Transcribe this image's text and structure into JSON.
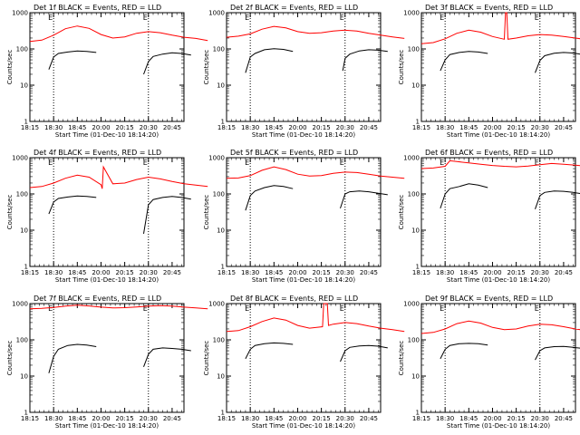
{
  "ui": {
    "y_ticks": [
      "1",
      "10",
      "100",
      "1000"
    ],
    "x_ticks": [
      "18:15",
      "18:30",
      "18:45",
      "20:00",
      "20:15",
      "20:30",
      "20:45"
    ],
    "marker_labels": [
      "E",
      "E"
    ],
    "line_colors": {
      "events": "#000000",
      "lld": "#ff0000",
      "marker": "#000000"
    }
  },
  "chart_data": [
    {
      "type": "line",
      "title": "Det 1f BLACK = Events, RED = LLD",
      "xlabel": "Start Time (01-Dec-10 18:14:20)",
      "ylabel": "Counts/sec",
      "yscale": "log",
      "ylim": [
        1,
        1000
      ],
      "x_ticks": [
        "18:15",
        "18:30",
        "18:45",
        "20:00",
        "20:15",
        "20:30",
        "20:45"
      ],
      "markers": [
        {
          "at": "18:30",
          "label": "E"
        },
        {
          "at": "20:30",
          "label": "E"
        }
      ],
      "events": [
        {
          "x": [
            0.8,
            1.0,
            1.2,
            1.6,
            2.0,
            2.4,
            2.8
          ],
          "y": [
            27,
            60,
            75,
            82,
            88,
            85,
            80
          ]
        },
        {
          "x": [
            4.8,
            5.0,
            5.2,
            5.6,
            6.0,
            6.4,
            6.8
          ],
          "y": [
            20,
            45,
            62,
            72,
            78,
            75,
            68
          ]
        }
      ],
      "lld": {
        "x": [
          0,
          0.5,
          1.0,
          1.5,
          2.0,
          2.5,
          3.0,
          3.5,
          4.0,
          4.5,
          5.0,
          5.5,
          6.0,
          6.5,
          7.0,
          7.5
        ],
        "y": [
          160,
          175,
          240,
          360,
          430,
          370,
          250,
          200,
          215,
          270,
          300,
          280,
          240,
          210,
          195,
          170
        ]
      }
    },
    {
      "type": "line",
      "title": "Det 2f BLACK = Events, RED = LLD",
      "xlabel": "Start Time (01-Dec-10 18:14:20)",
      "ylabel": "Counts/sec",
      "yscale": "log",
      "ylim": [
        1,
        1000
      ],
      "x_ticks": [
        "18:15",
        "18:30",
        "18:45",
        "20:00",
        "20:15",
        "20:30",
        "20:45"
      ],
      "markers": [
        {
          "at": "18:30",
          "label": "E"
        },
        {
          "at": "20:30",
          "label": "E"
        }
      ],
      "events": [
        {
          "x": [
            0.8,
            1.0,
            1.2,
            1.6,
            2.0,
            2.4,
            2.8
          ],
          "y": [
            22,
            60,
            75,
            95,
            102,
            97,
            85
          ]
        },
        {
          "x": [
            4.9,
            5.0,
            5.2,
            5.6,
            6.0,
            6.4,
            6.8
          ],
          "y": [
            25,
            55,
            72,
            88,
            95,
            92,
            85
          ]
        }
      ],
      "lld": {
        "x": [
          0,
          0.5,
          1.0,
          1.5,
          2.0,
          2.5,
          3.0,
          3.5,
          4.0,
          4.5,
          5.0,
          5.5,
          6.0,
          6.5,
          7.0,
          7.5
        ],
        "y": [
          210,
          225,
          260,
          350,
          420,
          380,
          300,
          270,
          280,
          310,
          330,
          310,
          270,
          240,
          215,
          195
        ]
      }
    },
    {
      "type": "line",
      "title": "Det 3f BLACK = Events, RED = LLD",
      "xlabel": "Start Time (01-Dec-10 18:14:20)",
      "ylabel": "Counts/sec",
      "yscale": "log",
      "ylim": [
        1,
        1000
      ],
      "x_ticks": [
        "18:15",
        "18:30",
        "18:45",
        "20:00",
        "20:15",
        "20:30",
        "20:45"
      ],
      "markers": [
        {
          "at": "18:30",
          "label": "E"
        },
        {
          "at": "20:30",
          "label": "E"
        }
      ],
      "events": [
        {
          "x": [
            0.8,
            1.0,
            1.2,
            1.6,
            2.0,
            2.4,
            2.8
          ],
          "y": [
            25,
            50,
            70,
            80,
            85,
            82,
            75
          ]
        },
        {
          "x": [
            4.8,
            5.0,
            5.2,
            5.6,
            6.0,
            6.4,
            6.8
          ],
          "y": [
            22,
            48,
            65,
            76,
            80,
            77,
            70
          ]
        }
      ],
      "lld": {
        "x": [
          0,
          0.5,
          1.0,
          1.5,
          2.0,
          2.5,
          3.0,
          3.5,
          3.55,
          3.6,
          3.65,
          4.0,
          4.5,
          5.0,
          5.5,
          6.0,
          6.5,
          7.0,
          7.5
        ],
        "y": [
          140,
          150,
          190,
          270,
          330,
          290,
          220,
          185,
          1000,
          1000,
          185,
          200,
          230,
          250,
          240,
          220,
          200,
          180,
          165
        ]
      }
    },
    {
      "type": "line",
      "title": "Det 4f BLACK = Events, RED = LLD",
      "xlabel": "Start Time (01-Dec-10 18:14:20)",
      "ylabel": "Counts/sec",
      "yscale": "log",
      "ylim": [
        1,
        1000
      ],
      "x_ticks": [
        "18:15",
        "18:30",
        "18:45",
        "20:00",
        "20:15",
        "20:30",
        "20:45"
      ],
      "markers": [
        {
          "at": "18:30",
          "label": "E"
        },
        {
          "at": "20:30",
          "label": "E"
        }
      ],
      "events": [
        {
          "x": [
            0.8,
            1.0,
            1.2,
            1.6,
            2.0,
            2.4,
            2.8
          ],
          "y": [
            28,
            60,
            75,
            82,
            88,
            85,
            80
          ]
        },
        {
          "x": [
            4.8,
            5.0,
            5.2,
            5.6,
            6.0,
            6.4,
            6.8
          ],
          "y": [
            8,
            50,
            70,
            80,
            85,
            80,
            72
          ]
        }
      ],
      "lld": {
        "x": [
          0,
          0.5,
          1.0,
          1.5,
          2.0,
          2.5,
          3.0,
          3.05,
          3.1,
          3.5,
          4.0,
          4.5,
          5.0,
          5.5,
          6.0,
          6.5,
          7.0,
          7.5
        ],
        "y": [
          150,
          160,
          200,
          270,
          330,
          290,
          180,
          140,
          560,
          190,
          200,
          250,
          290,
          260,
          220,
          190,
          175,
          160
        ]
      }
    },
    {
      "type": "line",
      "title": "Det 5f BLACK = Events, RED = LLD",
      "xlabel": "Start Time (01-Dec-10 18:14:20)",
      "ylabel": "Counts/sec",
      "yscale": "log",
      "ylim": [
        1,
        1000
      ],
      "x_ticks": [
        "18:15",
        "18:30",
        "18:45",
        "20:00",
        "20:15",
        "20:30",
        "20:45"
      ],
      "markers": [
        {
          "at": "18:30",
          "label": "E"
        },
        {
          "at": "20:30",
          "label": "E"
        }
      ],
      "events": [
        {
          "x": [
            0.8,
            1.0,
            1.2,
            1.6,
            2.0,
            2.4,
            2.8
          ],
          "y": [
            35,
            90,
            120,
            150,
            170,
            160,
            140
          ]
        },
        {
          "x": [
            4.8,
            5.0,
            5.2,
            5.6,
            6.0,
            6.4,
            6.8
          ],
          "y": [
            40,
            100,
            115,
            120,
            115,
            105,
            95
          ]
        }
      ],
      "lld": {
        "x": [
          0,
          0.5,
          1.0,
          1.5,
          2.0,
          2.5,
          3.0,
          3.5,
          4.0,
          4.5,
          5.0,
          5.5,
          6.0,
          6.5,
          7.0,
          7.5
        ],
        "y": [
          270,
          275,
          320,
          450,
          560,
          470,
          350,
          310,
          320,
          370,
          400,
          390,
          350,
          310,
          290,
          270
        ]
      }
    },
    {
      "type": "line",
      "title": "Det 6f BLACK = Events, RED = LLD",
      "xlabel": "Start Time (01-Dec-10 18:14:20)",
      "ylabel": "Counts/sec",
      "yscale": "log",
      "ylim": [
        1,
        1000
      ],
      "x_ticks": [
        "18:15",
        "18:30",
        "18:45",
        "20:00",
        "20:15",
        "20:30",
        "20:45"
      ],
      "markers": [
        {
          "at": "18:30",
          "label": "E"
        },
        {
          "at": "20:30",
          "label": "E"
        }
      ],
      "events": [
        {
          "x": [
            0.8,
            1.0,
            1.2,
            1.6,
            2.0,
            2.4,
            2.8
          ],
          "y": [
            40,
            100,
            140,
            160,
            190,
            175,
            150
          ]
        },
        {
          "x": [
            4.8,
            5.0,
            5.2,
            5.6,
            6.0,
            6.4,
            6.8
          ],
          "y": [
            38,
            90,
            110,
            120,
            118,
            110,
            100
          ]
        }
      ],
      "lld": {
        "x": [
          0,
          0.5,
          1.0,
          1.2,
          1.5,
          2.0,
          2.5,
          3.0,
          3.5,
          4.0,
          4.5,
          5.0,
          5.5,
          6.0,
          6.5,
          7.0,
          7.5
        ],
        "y": [
          500,
          520,
          580,
          820,
          780,
          720,
          660,
          610,
          580,
          560,
          590,
          640,
          690,
          660,
          620,
          580,
          540
        ]
      }
    },
    {
      "type": "line",
      "title": "Det 7f BLACK = Events, RED = LLD",
      "xlabel": "Start Time (01-Dec-10 18:14:20)",
      "ylabel": "Counts/sec",
      "yscale": "log",
      "ylim": [
        1,
        1000
      ],
      "x_ticks": [
        "18:15",
        "18:30",
        "18:45",
        "20:00",
        "20:15",
        "20:30",
        "20:45"
      ],
      "markers": [
        {
          "at": "18:30",
          "label": "E"
        },
        {
          "at": "20:30",
          "label": "E"
        }
      ],
      "events": [
        {
          "x": [
            0.8,
            1.0,
            1.2,
            1.6,
            2.0,
            2.4,
            2.8
          ],
          "y": [
            12,
            35,
            55,
            70,
            75,
            72,
            65
          ]
        },
        {
          "x": [
            4.8,
            5.0,
            5.2,
            5.6,
            6.0,
            6.4,
            6.8
          ],
          "y": [
            18,
            40,
            55,
            60,
            58,
            55,
            50
          ]
        }
      ],
      "lld": {
        "x": [
          0,
          0.5,
          1.0,
          1.5,
          2.0,
          2.5,
          3.0,
          3.5,
          4.0,
          4.5,
          5.0,
          5.5,
          6.0,
          6.5,
          7.0,
          7.5
        ],
        "y": [
          720,
          740,
          780,
          850,
          900,
          860,
          800,
          760,
          770,
          810,
          850,
          880,
          850,
          800,
          760,
          720
        ]
      }
    },
    {
      "type": "line",
      "title": "Det 8f BLACK = Events, RED = LLD",
      "xlabel": "Start Time (01-Dec-10 18:14:20)",
      "ylabel": "Counts/sec",
      "yscale": "log",
      "ylim": [
        1,
        1000
      ],
      "x_ticks": [
        "18:15",
        "18:30",
        "18:45",
        "20:00",
        "20:15",
        "20:30",
        "20:45"
      ],
      "markers": [
        {
          "at": "18:30",
          "label": "E"
        },
        {
          "at": "20:30",
          "label": "E"
        }
      ],
      "events": [
        {
          "x": [
            0.8,
            1.0,
            1.2,
            1.6,
            2.0,
            2.4,
            2.8
          ],
          "y": [
            30,
            55,
            70,
            78,
            82,
            80,
            75
          ]
        },
        {
          "x": [
            4.8,
            5.0,
            5.2,
            5.6,
            6.0,
            6.4,
            6.8
          ],
          "y": [
            25,
            50,
            62,
            68,
            70,
            67,
            60
          ]
        }
      ],
      "lld": {
        "x": [
          0,
          0.5,
          1.0,
          1.5,
          2.0,
          2.5,
          3.0,
          3.5,
          3.8,
          4.05,
          4.1,
          4.25,
          4.3,
          4.5,
          5.0,
          5.5,
          6.0,
          6.5,
          7.0,
          7.5
        ],
        "y": [
          170,
          180,
          230,
          320,
          400,
          350,
          250,
          210,
          220,
          230,
          1000,
          1000,
          250,
          270,
          300,
          280,
          240,
          210,
          190,
          170
        ]
      }
    },
    {
      "type": "line",
      "title": "Det 9f BLACK = Events, RED = LLD",
      "xlabel": "Start Time (01-Dec-10 18:14:20)",
      "ylabel": "Counts/sec",
      "yscale": "log",
      "ylim": [
        1,
        1000
      ],
      "x_ticks": [
        "18:15",
        "18:30",
        "18:45",
        "20:00",
        "20:15",
        "20:30",
        "20:45"
      ],
      "markers": [
        {
          "at": "18:30",
          "label": "E"
        },
        {
          "at": "20:30",
          "label": "E"
        }
      ],
      "events": [
        {
          "x": [
            0.8,
            1.0,
            1.2,
            1.6,
            2.0,
            2.4,
            2.8
          ],
          "y": [
            30,
            55,
            70,
            78,
            80,
            78,
            72
          ]
        },
        {
          "x": [
            4.8,
            5.0,
            5.2,
            5.6,
            6.0,
            6.4,
            6.8
          ],
          "y": [
            28,
            50,
            60,
            65,
            66,
            62,
            58
          ]
        }
      ],
      "lld": {
        "x": [
          0,
          0.5,
          1.0,
          1.5,
          2.0,
          2.5,
          3.0,
          3.5,
          4.0,
          4.5,
          5.0,
          5.5,
          6.0,
          6.5,
          7.0,
          7.5
        ],
        "y": [
          150,
          160,
          200,
          280,
          330,
          290,
          220,
          190,
          200,
          240,
          270,
          260,
          230,
          200,
          180,
          160
        ]
      }
    }
  ]
}
